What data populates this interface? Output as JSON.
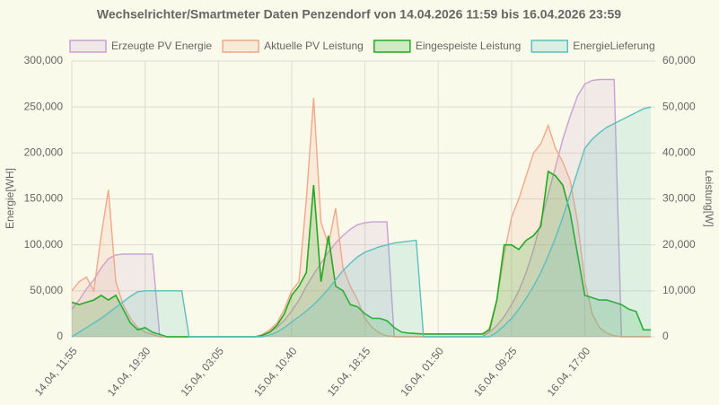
{
  "chart_data": {
    "type": "area",
    "title": "Wechselrichter/Smartmeter Daten Penzendorf von 14.04.2026 11:59 bis 16.04.2026 23:59",
    "y_label": "Energie[WH]",
    "y2_label": "Leistung[W]",
    "grid": true,
    "categories": [
      "14.04, 11:55",
      null,
      null,
      null,
      null,
      null,
      null,
      null,
      null,
      null,
      "14.04, 19:30",
      null,
      null,
      null,
      null,
      null,
      null,
      null,
      null,
      null,
      "15.04, 03:05",
      null,
      null,
      null,
      null,
      null,
      null,
      null,
      null,
      null,
      "15.04, 10:40",
      null,
      null,
      null,
      null,
      null,
      null,
      null,
      null,
      null,
      "15.04, 18:15",
      null,
      null,
      null,
      null,
      null,
      null,
      null,
      null,
      null,
      "16.04, 01:50",
      null,
      null,
      null,
      null,
      null,
      null,
      null,
      null,
      null,
      "16.04, 09:25",
      null,
      null,
      null,
      null,
      null,
      null,
      null,
      null,
      null,
      "16.04, 17:00",
      null,
      null,
      null,
      null,
      null,
      null,
      null,
      null,
      null
    ],
    "ylim": [
      0,
      300000
    ],
    "yticks": [
      0,
      {
        "value": 50000,
        "label": "50,000"
      },
      {
        "value": 100000,
        "label": "100,000"
      },
      {
        "value": 150000,
        "label": "150,000"
      },
      {
        "value": 200000,
        "label": "200,000"
      },
      {
        "value": 250000,
        "label": "250,000"
      },
      {
        "value": 300000,
        "label": "300,000"
      }
    ],
    "y2lim": [
      0,
      60000
    ],
    "y2ticks": [
      0,
      {
        "value": 10000,
        "label": "10,000"
      },
      {
        "value": 20000,
        "label": "20,000"
      },
      {
        "value": 30000,
        "label": "30,000"
      },
      {
        "value": 40000,
        "label": "40,000"
      },
      {
        "value": 50000,
        "label": "50,000"
      },
      {
        "value": 60000,
        "label": "60,000"
      }
    ],
    "series": [
      {
        "name": "Erzeugte PV Energie",
        "color": "#c9a0d4",
        "values": [
          30000,
          40000,
          52000,
          62000,
          75000,
          85000,
          89000,
          90000,
          90000,
          90000,
          90000,
          90000,
          0,
          0,
          0,
          0,
          0,
          0,
          0,
          0,
          0,
          0,
          0,
          0,
          0,
          0,
          2000,
          5000,
          10000,
          18000,
          28000,
          40000,
          55000,
          68000,
          80000,
          92000,
          102000,
          110000,
          117000,
          122000,
          124000,
          125000,
          125000,
          125000,
          0,
          0,
          0,
          0,
          0,
          0,
          0,
          0,
          0,
          0,
          0,
          0,
          0,
          5000,
          12000,
          22000,
          35000,
          50000,
          70000,
          95000,
          125000,
          155000,
          185000,
          215000,
          240000,
          262000,
          275000,
          279000,
          280000,
          280000,
          280000,
          0,
          0,
          0,
          0,
          0
        ]
      },
      {
        "name": "Aktuelle PV Leistung",
        "color": "#f0a88a",
        "axis": "y2",
        "values": [
          10000,
          12000,
          13000,
          10000,
          22000,
          32000,
          12000,
          7000,
          4000,
          2000,
          1000,
          500,
          0,
          0,
          0,
          0,
          0,
          0,
          0,
          0,
          0,
          0,
          0,
          0,
          0,
          0,
          500,
          1500,
          3000,
          6000,
          10000,
          12000,
          30000,
          52000,
          25000,
          20000,
          28000,
          15000,
          11000,
          8000,
          4000,
          2000,
          800,
          200,
          0,
          0,
          0,
          0,
          0,
          0,
          0,
          0,
          0,
          0,
          0,
          0,
          0,
          2000,
          8000,
          18000,
          26000,
          30000,
          35000,
          40000,
          42000,
          46000,
          41000,
          38000,
          34000,
          25000,
          12000,
          5000,
          2000,
          800,
          200,
          0,
          0,
          0,
          0,
          0
        ]
      },
      {
        "name": "Eingespeiste Leistung",
        "color": "#22aa22",
        "axis": "y2",
        "values": [
          7500,
          7000,
          7500,
          8000,
          9000,
          8000,
          9000,
          6000,
          3000,
          1500,
          2000,
          1000,
          500,
          0,
          0,
          0,
          0,
          0,
          0,
          0,
          0,
          0,
          0,
          0,
          0,
          0,
          300,
          1000,
          2500,
          5000,
          9000,
          11000,
          14000,
          33000,
          12000,
          22000,
          11000,
          10000,
          7000,
          6500,
          5000,
          4000,
          4000,
          3500,
          2000,
          1000,
          800,
          700,
          600,
          600,
          600,
          600,
          600,
          600,
          600,
          600,
          600,
          1500,
          8000,
          20000,
          20000,
          19000,
          21000,
          22000,
          24000,
          36000,
          35000,
          33000,
          27000,
          18000,
          9000,
          8500,
          8000,
          8000,
          7500,
          7000,
          6000,
          5500,
          1500,
          1500
        ]
      },
      {
        "name": "EnergieLieferung",
        "color": "#5bc0be",
        "values": [
          0,
          5000,
          10000,
          15000,
          20000,
          26000,
          32000,
          38000,
          44000,
          49000,
          50000,
          50000,
          50000,
          50000,
          50000,
          50000,
          0,
          0,
          0,
          0,
          0,
          0,
          0,
          0,
          0,
          0,
          0,
          2000,
          5000,
          10000,
          16000,
          22000,
          28000,
          35000,
          43000,
          52000,
          62000,
          72000,
          80000,
          87000,
          92000,
          95000,
          98000,
          100000,
          102000,
          103000,
          104000,
          105000,
          0,
          0,
          0,
          0,
          0,
          0,
          0,
          0,
          0,
          0,
          5000,
          12000,
          20000,
          30000,
          42000,
          55000,
          70000,
          88000,
          108000,
          130000,
          155000,
          180000,
          205000,
          215000,
          222000,
          228000,
          232000,
          236000,
          240000,
          244000,
          248000,
          250000
        ]
      }
    ]
  }
}
